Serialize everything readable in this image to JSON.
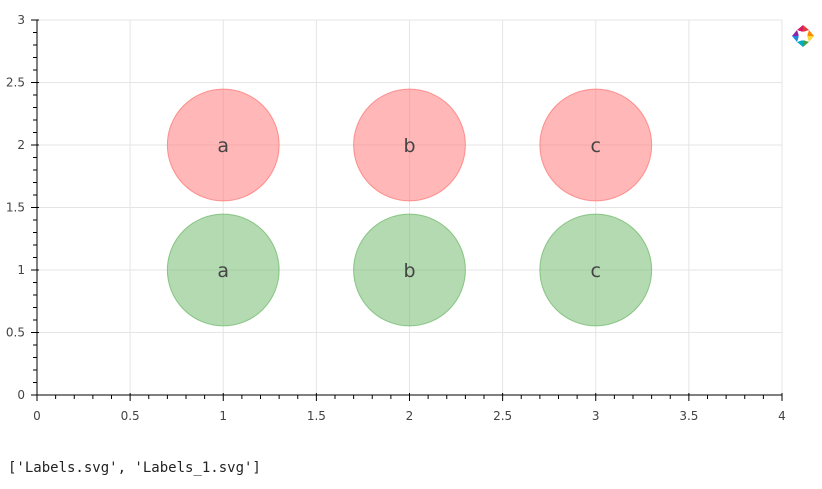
{
  "chart_data": {
    "type": "scatter",
    "xlim": [
      0,
      4
    ],
    "ylim": [
      0,
      3
    ],
    "x_ticks": [
      "0",
      "0.5",
      "1",
      "1.5",
      "2",
      "2.5",
      "3",
      "3.5",
      "4"
    ],
    "y_ticks": [
      "0",
      "0.5",
      "1",
      "1.5",
      "2",
      "2.5",
      "3"
    ],
    "grid": true,
    "series": [
      {
        "color": "#ff7b7b",
        "points": [
          {
            "x": 1,
            "y": 2,
            "label": "a"
          },
          {
            "x": 2,
            "y": 2,
            "label": "b"
          },
          {
            "x": 3,
            "y": 2,
            "label": "c"
          }
        ]
      },
      {
        "color": "#74bb6f",
        "points": [
          {
            "x": 1,
            "y": 1,
            "label": "a"
          },
          {
            "x": 2,
            "y": 1,
            "label": "b"
          },
          {
            "x": 3,
            "y": 1,
            "label": "c"
          }
        ]
      }
    ],
    "marker_radius": 0.3
  },
  "output": {
    "text": "['Labels.svg', 'Labels_1.svg']"
  },
  "toolbar": {
    "logo_icon": "bokeh-logo-icon"
  }
}
